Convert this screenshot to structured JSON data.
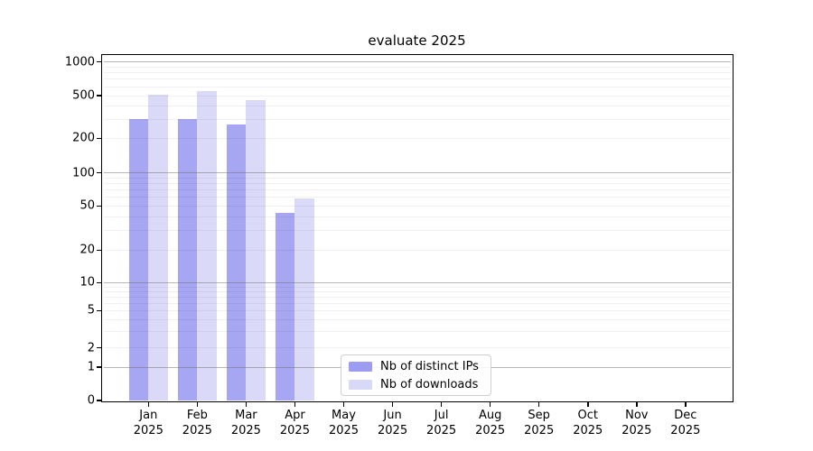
{
  "title": "evaluate 2025",
  "legend": {
    "items": [
      {
        "label": "Nb of distinct IPs",
        "color": "#9c9cf0"
      },
      {
        "label": "Nb of downloads",
        "color": "#d8d8f7"
      }
    ]
  },
  "chart_data": {
    "type": "bar",
    "title": "evaluate 2025",
    "categories": [
      "Jan 2025",
      "Feb 2025",
      "Mar 2025",
      "Apr 2025",
      "May 2025",
      "Jun 2025",
      "Jul 2025",
      "Aug 2025",
      "Sep 2025",
      "Oct 2025",
      "Nov 2025",
      "Dec 2025"
    ],
    "series": [
      {
        "name": "Nb of distinct IPs",
        "color": "#a6a6f2",
        "values": [
          305,
          303,
          268,
          43,
          null,
          null,
          null,
          null,
          null,
          null,
          null,
          null
        ]
      },
      {
        "name": "Nb of downloads",
        "color": "#dadaf8",
        "values": [
          510,
          548,
          452,
          58,
          null,
          null,
          null,
          null,
          null,
          null,
          null,
          null
        ]
      }
    ],
    "yscale": "symlog",
    "ylim": [
      0,
      1100
    ],
    "yticks": [
      0,
      1,
      2,
      5,
      10,
      20,
      50,
      100,
      200,
      500,
      1000
    ],
    "grid": "both",
    "legend_position": "lower center"
  },
  "colors": {
    "background": "#ffffff",
    "spine": "#000000",
    "grid_major": "#b7b7b7",
    "grid_minor": "#ebebeb"
  }
}
